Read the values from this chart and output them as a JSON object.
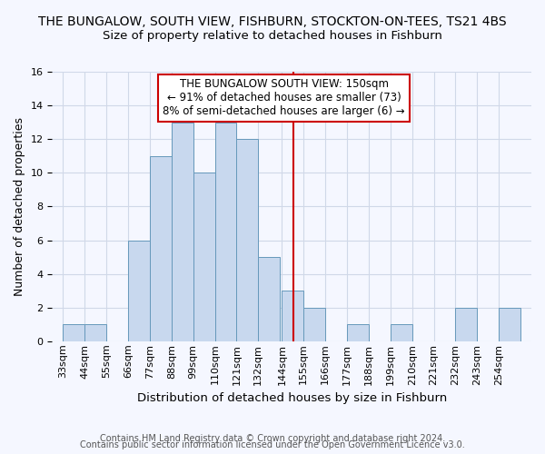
{
  "title": "THE BUNGALOW, SOUTH VIEW, FISHBURN, STOCKTON-ON-TEES, TS21 4BS",
  "subtitle": "Size of property relative to detached houses in Fishburn",
  "xlabel": "Distribution of detached houses by size in Fishburn",
  "ylabel": "Number of detached properties",
  "footer1": "Contains HM Land Registry data © Crown copyright and database right 2024.",
  "footer2": "Contains public sector information licensed under the Open Government Licence v3.0.",
  "annotation_line1": "THE BUNGALOW SOUTH VIEW: 150sqm",
  "annotation_line2": "← 91% of detached houses are smaller (73)",
  "annotation_line3": "8% of semi-detached houses are larger (6) →",
  "property_size": 150,
  "bar_color": "#c8d8ee",
  "bar_edge_color": "#6699bb",
  "vline_color": "#cc0000",
  "annotation_box_edgecolor": "#cc0000",
  "grid_color": "#d0d8e8",
  "bg_color": "#f5f7ff",
  "categories": [
    "33sqm",
    "44sqm",
    "55sqm",
    "66sqm",
    "77sqm",
    "88sqm",
    "99sqm",
    "110sqm",
    "121sqm",
    "132sqm",
    "144sqm",
    "155sqm",
    "166sqm",
    "177sqm",
    "188sqm",
    "199sqm",
    "210sqm",
    "221sqm",
    "232sqm",
    "243sqm",
    "254sqm"
  ],
  "bin_left_edges": [
    33,
    44,
    55,
    66,
    77,
    88,
    99,
    110,
    121,
    132,
    144,
    155,
    166,
    177,
    188,
    199,
    210,
    221,
    232,
    243,
    254
  ],
  "bin_width": 11,
  "values": [
    1,
    1,
    0,
    6,
    11,
    13,
    10,
    13,
    12,
    5,
    3,
    2,
    0,
    1,
    0,
    1,
    0,
    0,
    2,
    0,
    2
  ],
  "ylim": [
    0,
    16
  ],
  "yticks": [
    0,
    2,
    4,
    6,
    8,
    10,
    12,
    14,
    16
  ],
  "title_fontsize": 10,
  "subtitle_fontsize": 9.5,
  "tick_fontsize": 8,
  "ylabel_fontsize": 9,
  "xlabel_fontsize": 9.5,
  "footer_fontsize": 7,
  "ann_fontsize": 8.5
}
